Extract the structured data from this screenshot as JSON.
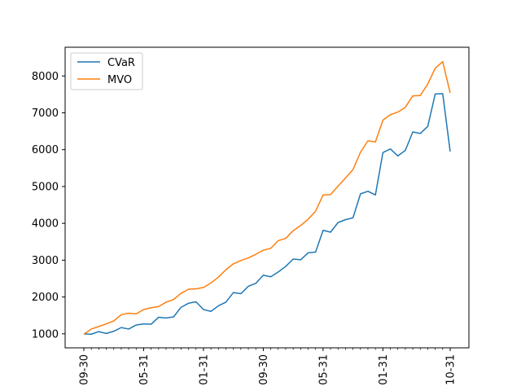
{
  "chart_data": {
    "type": "line",
    "title": "",
    "xlabel": "",
    "ylabel": "",
    "ylim": [
      620,
      8780
    ],
    "grid": false,
    "legend_placement": "top-left",
    "x_tick_labels": [
      {
        "index": 0,
        "label": "09-30"
      },
      {
        "index": 8,
        "label": "05-31"
      },
      {
        "index": 16,
        "label": "01-31"
      },
      {
        "index": 24,
        "label": "09-30"
      },
      {
        "index": 32,
        "label": "05-31"
      },
      {
        "index": 40,
        "label": "01-31"
      },
      {
        "index": 49,
        "label": "10-31"
      }
    ],
    "y_ticks": [
      1000,
      2000,
      3000,
      4000,
      5000,
      6000,
      7000,
      8000
    ],
    "y_tick_labels": [
      "1000",
      "2000",
      "3000",
      "4000",
      "5000",
      "6000",
      "7000",
      "8000"
    ],
    "series": [
      {
        "name": "CVaR",
        "color": "#1f77b4",
        "values": [
          1000,
          990,
          1060,
          1010,
          1070,
          1170,
          1130,
          1240,
          1270,
          1260,
          1450,
          1430,
          1460,
          1720,
          1830,
          1870,
          1660,
          1610,
          1760,
          1860,
          2120,
          2090,
          2290,
          2370,
          2590,
          2550,
          2680,
          2830,
          3030,
          3010,
          3200,
          3220,
          3810,
          3760,
          4020,
          4100,
          4150,
          4800,
          4870,
          4770,
          5920,
          6020,
          5830,
          5980,
          6480,
          6440,
          6630,
          7510,
          7520,
          5950
        ]
      },
      {
        "name": "MVO",
        "color": "#ff7f0e",
        "values": [
          990,
          1130,
          1200,
          1270,
          1350,
          1520,
          1560,
          1540,
          1660,
          1710,
          1740,
          1860,
          1930,
          2100,
          2210,
          2220,
          2260,
          2380,
          2540,
          2740,
          2900,
          2990,
          3060,
          3160,
          3270,
          3320,
          3530,
          3590,
          3800,
          3940,
          4110,
          4330,
          4770,
          4780,
          5010,
          5230,
          5460,
          5930,
          6240,
          6210,
          6800,
          6950,
          7020,
          7150,
          7460,
          7470,
          7780,
          8210,
          8390,
          7540
        ]
      }
    ]
  }
}
